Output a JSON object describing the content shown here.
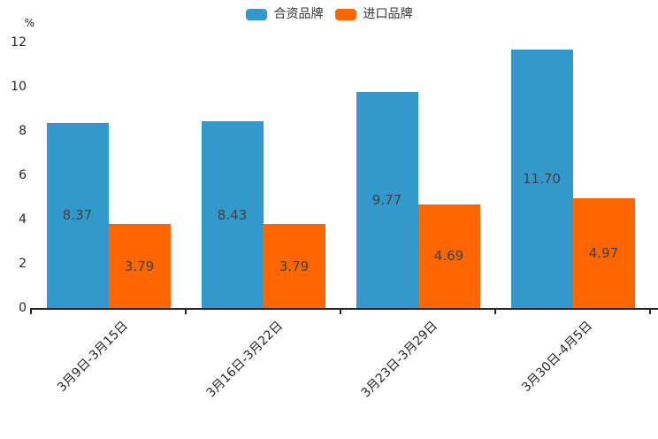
{
  "chart_data": {
    "type": "bar",
    "title": "",
    "xlabel": "",
    "ylabel": "%",
    "categories": [
      "3月9日-3月15日",
      "3月16日-3月22日",
      "3月23日-3月29日",
      "3月30日-4月5日"
    ],
    "yticks": [
      0,
      2,
      4,
      6,
      8,
      10,
      12
    ],
    "ylim": [
      0,
      12
    ],
    "grid": false,
    "legend_position": "top-center",
    "series": [
      {
        "name": "合资品牌",
        "color": "#3398cc",
        "values": [
          8.37,
          8.43,
          9.77,
          11.7
        ],
        "labels": [
          "8.37",
          "8.43",
          "9.77",
          "11.70"
        ]
      },
      {
        "name": "进口品牌",
        "color": "#ff6600",
        "values": [
          3.79,
          3.79,
          4.69,
          4.97
        ],
        "labels": [
          "3.79",
          "3.79",
          "4.69",
          "4.97"
        ]
      }
    ]
  },
  "colors": {
    "axis": "#262626",
    "value_label": "#404040",
    "legend_text": "#333333",
    "background": "#ffffff"
  }
}
